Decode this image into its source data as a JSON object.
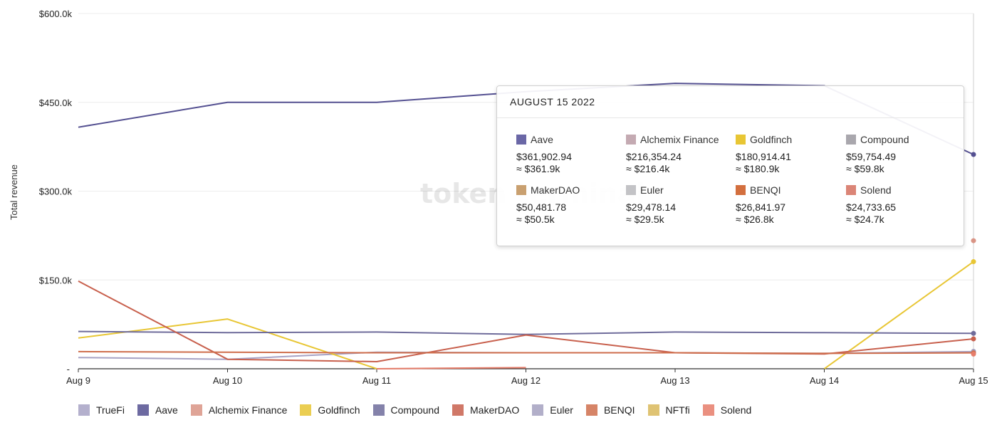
{
  "chart_data": {
    "type": "line",
    "ylabel": "Total revenue",
    "ylim": [
      0,
      600000
    ],
    "yticks": [
      {
        "value": 0,
        "label": "-"
      },
      {
        "value": 150000,
        "label": "$150.0k"
      },
      {
        "value": 300000,
        "label": "$300.0k"
      },
      {
        "value": 450000,
        "label": "$450.0k"
      },
      {
        "value": 600000,
        "label": "$600.0k"
      }
    ],
    "categories": [
      "Aug 9",
      "Aug 10",
      "Aug 11",
      "Aug 12",
      "Aug 13",
      "Aug 14",
      "Aug 15"
    ],
    "grid": true,
    "legend_position": "bottom",
    "watermark": "token terminal",
    "series": [
      {
        "name": "TrueFi",
        "color": "#a7a2c4",
        "values": [
          19000,
          16000,
          28000,
          27000,
          27000,
          26000,
          29000
        ]
      },
      {
        "name": "Aave",
        "color": "#545091",
        "values": [
          408000,
          450000,
          450000,
          468000,
          482000,
          478000,
          361902.94
        ]
      },
      {
        "name": "Alchemix Finance",
        "color": "#d99485",
        "values": [
          null,
          null,
          null,
          null,
          null,
          null,
          216354.24
        ]
      },
      {
        "name": "Goldfinch",
        "color": "#e8c634",
        "values": [
          52000,
          84000,
          0,
          null,
          null,
          0,
          180914.41
        ]
      },
      {
        "name": "Compound",
        "color": "#6f6c9b",
        "values": [
          63000,
          61000,
          62000,
          58000,
          62000,
          61000,
          59754.49
        ]
      },
      {
        "name": "MakerDAO",
        "color": "#c8604d",
        "values": [
          148000,
          16000,
          12000,
          57000,
          27000,
          25000,
          50481.78
        ]
      },
      {
        "name": "Euler",
        "color": "#a4a1c0",
        "values": [
          null,
          null,
          null,
          null,
          null,
          null,
          29478.14
        ]
      },
      {
        "name": "BENQI",
        "color": "#cf6e4c",
        "values": [
          29000,
          28000,
          27000,
          27000,
          27000,
          26000,
          26841.97
        ]
      },
      {
        "name": "NFTfi",
        "color": "#d9b85a",
        "values": [
          null,
          null,
          null,
          null,
          null,
          null,
          null
        ]
      },
      {
        "name": "Solend",
        "color": "#e67d6a",
        "values": [
          null,
          null,
          0,
          2000,
          null,
          null,
          24733.65
        ]
      }
    ]
  },
  "tooltip": {
    "title": "AUGUST 15 2022",
    "items": [
      {
        "name": "Aave",
        "value": "$361,902.94",
        "approx": "≈ $361.9k",
        "color": "#6a67a6"
      },
      {
        "name": "Alchemix Finance",
        "value": "$216,354.24",
        "approx": "≈ $216.4k",
        "color": "#c4aab2"
      },
      {
        "name": "Goldfinch",
        "value": "$180,914.41",
        "approx": "≈ $180.9k",
        "color": "#e8c634"
      },
      {
        "name": "Compound",
        "value": "$59,754.49",
        "approx": "≈ $59.8k",
        "color": "#a9a7ad"
      },
      {
        "name": "MakerDAO",
        "value": "$50,481.78",
        "approx": "≈ $50.5k",
        "color": "#c9a070"
      },
      {
        "name": "Euler",
        "value": "$29,478.14",
        "approx": "≈ $29.5k",
        "color": "#c3c3c6"
      },
      {
        "name": "BENQI",
        "value": "$26,841.97",
        "approx": "≈ $26.8k",
        "color": "#d36f3e"
      },
      {
        "name": "Solend",
        "value": "$24,733.65",
        "approx": "≈ $24.7k",
        "color": "#db8577"
      }
    ]
  },
  "legend": [
    {
      "name": "TrueFi",
      "color": "#a7a2c4"
    },
    {
      "name": "Aave",
      "color": "#545091"
    },
    {
      "name": "Alchemix Finance",
      "color": "#d99485"
    },
    {
      "name": "Goldfinch",
      "color": "#e8c634"
    },
    {
      "name": "Compound",
      "color": "#6f6c9b"
    },
    {
      "name": "MakerDAO",
      "color": "#c8604d"
    },
    {
      "name": "Euler",
      "color": "#a4a1c0"
    },
    {
      "name": "BENQI",
      "color": "#cf6e4c"
    },
    {
      "name": "NFTfi",
      "color": "#d9b85a"
    },
    {
      "name": "Solend",
      "color": "#e67d6a"
    }
  ]
}
